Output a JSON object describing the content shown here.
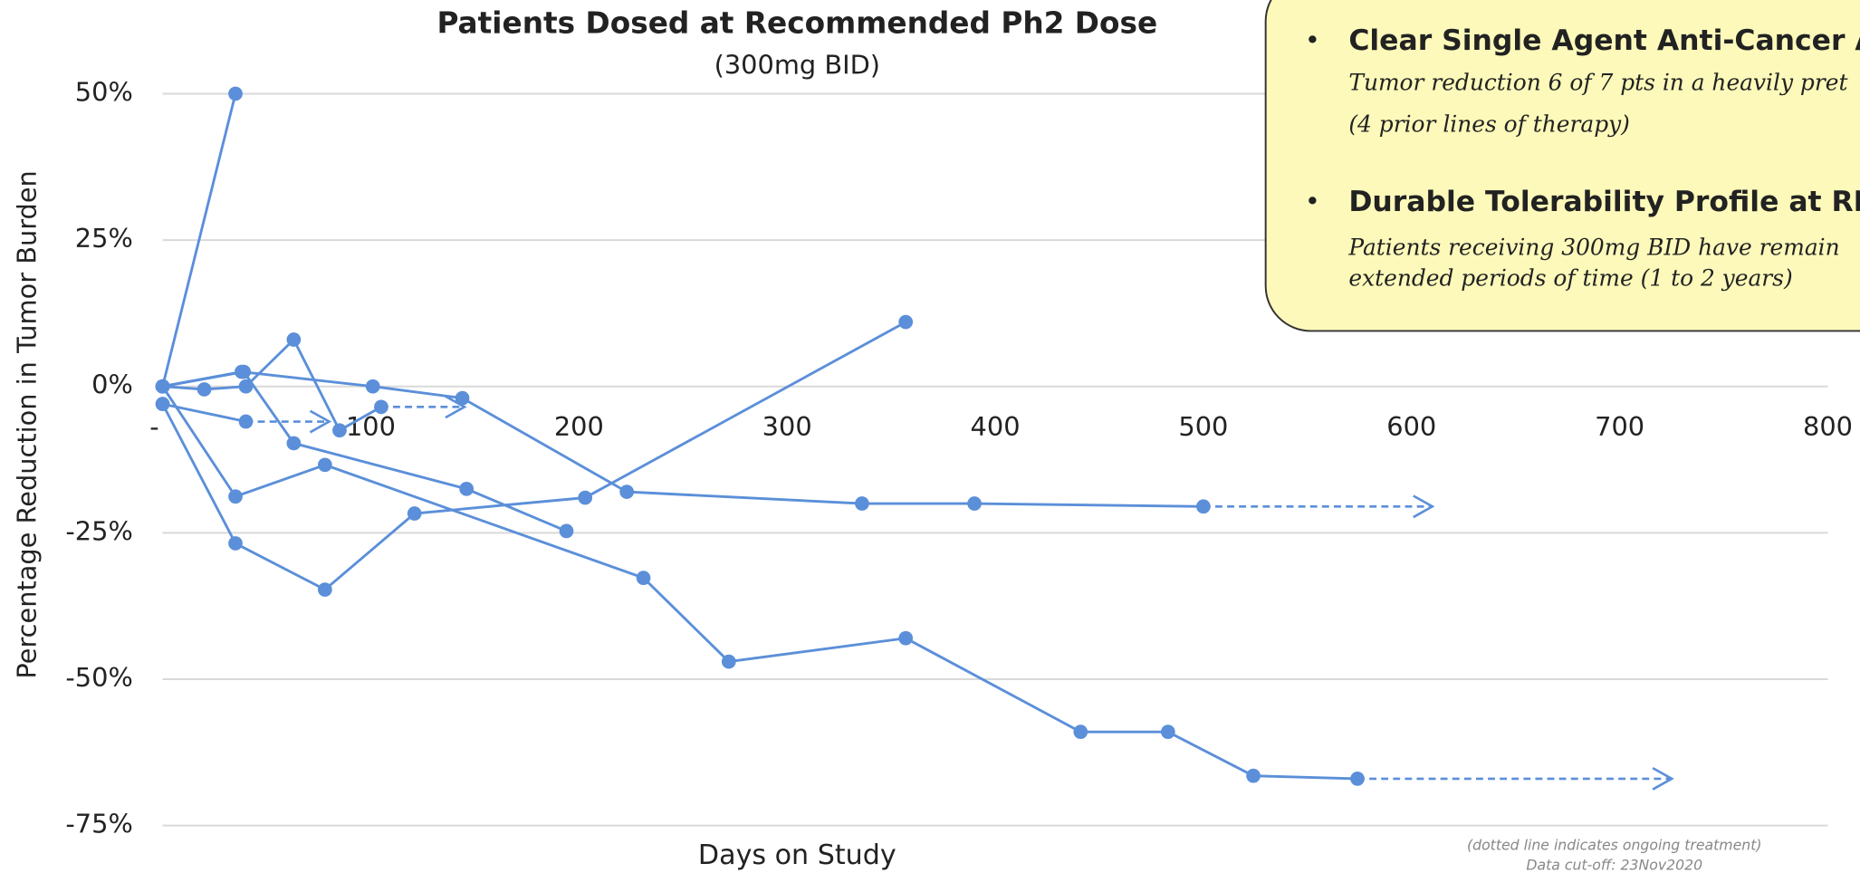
{
  "chart_data": {
    "type": "line",
    "title": "Patients Dosed at Recommended Ph2 Dose",
    "subtitle": "(300mg BID)",
    "x_label": "Days on Study",
    "y_label": "Percentage Reduction in Tumor Burden",
    "color": "#5b8fd9",
    "grid": true,
    "xlim": [
      0,
      800
    ],
    "ylim": [
      -75,
      50
    ],
    "xticks": [
      {
        "value": 0,
        "label": "-"
      },
      100,
      200,
      300,
      400,
      500,
      600,
      700,
      800
    ],
    "yticks": [
      {
        "value": 50,
        "label": "50%"
      },
      {
        "value": 25,
        "label": "25%"
      },
      {
        "value": 0,
        "label": "0%"
      },
      {
        "value": -25,
        "label": "-25%"
      },
      {
        "value": -50,
        "label": "-50%"
      },
      {
        "value": -75,
        "label": "-75%"
      }
    ],
    "series": [
      {
        "x": [
          0,
          35
        ],
        "values": [
          0,
          50
        ]
      },
      {
        "x": [
          0,
          20,
          40,
          63,
          85,
          105
        ],
        "values": [
          0,
          -0.5,
          0,
          8,
          -7.5,
          -3.5
        ],
        "ongoing_to": 145
      },
      {
        "x": [
          0,
          38,
          101,
          144,
          223,
          336,
          390,
          500
        ],
        "values": [
          0,
          2.5,
          0,
          -2,
          -18,
          -20,
          -20,
          -20.5
        ],
        "ongoing_to": 610
      },
      {
        "x": [
          0,
          40
        ],
        "values": [
          -3,
          -6
        ],
        "ongoing_to": 80
      },
      {
        "x": [
          0,
          35,
          78,
          231,
          272,
          357,
          441,
          483,
          524,
          574
        ],
        "values": [
          0,
          -18.8,
          -13.4,
          -32.7,
          -47,
          -43,
          -59,
          -59,
          -66.5,
          -67
        ],
        "ongoing_to": 725
      },
      {
        "x": [
          0,
          35,
          78,
          121,
          203,
          357
        ],
        "values": [
          -3,
          -26.8,
          -34.7,
          -21.7,
          -19,
          11
        ]
      },
      {
        "x": [
          0,
          39,
          63,
          146,
          194
        ],
        "values": [
          0,
          2.5,
          -9.7,
          -17.5,
          -24.7
        ]
      }
    ],
    "footnotes": [
      "(dotted line indicates ongoing treatment)",
      "Data cut-off: 23Nov2020"
    ]
  },
  "callout": {
    "items": [
      {
        "heading": "Clear Single Agent Anti-Cancer A",
        "lines": [
          "Tumor reduction 6 of 7 pts in a heavily pret",
          "(4 prior lines of therapy)"
        ]
      },
      {
        "heading": "Durable Tolerability Profile at RP",
        "lines": [
          "Patients receiving 300mg BID have remain",
          "extended periods of time (1 to 2 years)"
        ]
      }
    ]
  }
}
